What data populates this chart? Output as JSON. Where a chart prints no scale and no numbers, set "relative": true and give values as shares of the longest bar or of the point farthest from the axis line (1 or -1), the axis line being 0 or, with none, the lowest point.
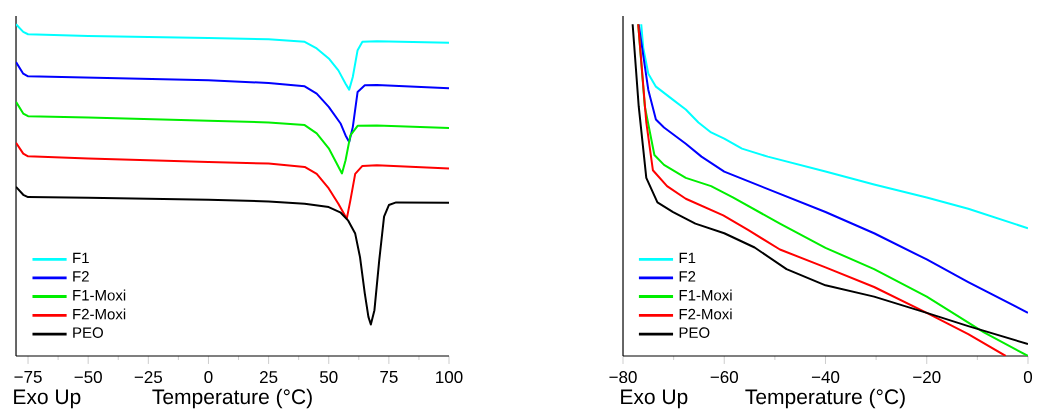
{
  "chart_data": [
    {
      "type": "line",
      "relative": true,
      "xlabel": "Temperature (°C)",
      "annotations": [
        "Exo Up"
      ],
      "xlim": [
        -80,
        100
      ],
      "xticks": [
        {
          "value": -75,
          "label": "−75"
        },
        {
          "value": -50,
          "label": "−50"
        },
        {
          "value": -25,
          "label": "−25"
        },
        0,
        25,
        50,
        75,
        100
      ],
      "legend": "bottom left",
      "grid": false,
      "marker": "none",
      "line_style": "solid",
      "series": [
        {
          "name": "F1",
          "color": "#00ffff",
          "x": [
            -80,
            -77,
            -75,
            -50,
            0,
            25,
            40,
            45,
            50,
            54,
            57,
            58.5,
            60,
            62,
            64,
            70,
            100
          ],
          "values": [
            1.0,
            0.977,
            0.97,
            0.965,
            0.959,
            0.955,
            0.947,
            0.927,
            0.897,
            0.861,
            0.821,
            0.803,
            0.841,
            0.922,
            0.947,
            0.949,
            0.944
          ]
        },
        {
          "name": "F2",
          "color": "#0000ff",
          "x": [
            -80,
            -77,
            -75,
            -50,
            0,
            25,
            40,
            45,
            50,
            55,
            57,
            58.5,
            60,
            62,
            65,
            70,
            100
          ],
          "values": [
            0.886,
            0.851,
            0.843,
            0.839,
            0.831,
            0.823,
            0.813,
            0.791,
            0.751,
            0.7,
            0.665,
            0.645,
            0.69,
            0.796,
            0.816,
            0.817,
            0.807
          ]
        },
        {
          "name": "F1-Moxi",
          "color": "#00ee00",
          "x": [
            -80,
            -77,
            -75,
            -50,
            0,
            25,
            40,
            45,
            50,
            53,
            55.5,
            57,
            59,
            62,
            70,
            100
          ],
          "values": [
            0.766,
            0.731,
            0.723,
            0.719,
            0.709,
            0.704,
            0.696,
            0.671,
            0.626,
            0.585,
            0.55,
            0.59,
            0.665,
            0.694,
            0.695,
            0.687
          ]
        },
        {
          "name": "F2-Moxi",
          "color": "#ff0000",
          "x": [
            -80,
            -77,
            -75,
            -50,
            0,
            25,
            40,
            45,
            50,
            54,
            57.5,
            59,
            61,
            64,
            70,
            100
          ],
          "values": [
            0.643,
            0.61,
            0.602,
            0.595,
            0.585,
            0.58,
            0.57,
            0.549,
            0.505,
            0.459,
            0.414,
            0.469,
            0.549,
            0.573,
            0.575,
            0.565
          ]
        },
        {
          "name": "PEO",
          "color": "#000000",
          "x": [
            -80,
            -77,
            -75,
            -50,
            0,
            25,
            40,
            50,
            55,
            58,
            61,
            63,
            65,
            66.5,
            67.5,
            69,
            71,
            73,
            75,
            78,
            100
          ],
          "values": [
            0.51,
            0.486,
            0.479,
            0.477,
            0.471,
            0.466,
            0.459,
            0.449,
            0.432,
            0.409,
            0.369,
            0.298,
            0.188,
            0.118,
            0.095,
            0.138,
            0.289,
            0.42,
            0.455,
            0.463,
            0.462
          ]
        }
      ]
    },
    {
      "type": "line",
      "relative": true,
      "xlabel": "Temperature (°C)",
      "annotations": [
        "Exo Up"
      ],
      "xlim": [
        -80,
        0
      ],
      "xticks": [
        {
          "value": -80,
          "label": "−80"
        },
        {
          "value": -60,
          "label": "−60"
        },
        {
          "value": -40,
          "label": "−40"
        },
        {
          "value": -20,
          "label": "−20"
        },
        0
      ],
      "legend": "bottom left",
      "grid": false,
      "marker": "none",
      "line_style": "solid",
      "series": [
        {
          "name": "F1",
          "color": "#00ffff",
          "x": [
            -76.4,
            -76.0,
            -75.0,
            -73.5,
            -70.1,
            -67.6,
            -65.1,
            -62.6,
            -60,
            -56.5,
            -51.4,
            -40,
            -30.4,
            -20,
            -11.8,
            0
          ],
          "values": [
            1.0,
            0.929,
            0.851,
            0.812,
            0.772,
            0.743,
            0.704,
            0.674,
            0.655,
            0.625,
            0.601,
            0.556,
            0.517,
            0.478,
            0.444,
            0.385
          ]
        },
        {
          "name": "F2",
          "color": "#0000ff",
          "x": [
            -76.9,
            -75.0,
            -73.5,
            -71.9,
            -67.6,
            -64.5,
            -60,
            -55.3,
            -40,
            -30.4,
            -20,
            -11.8,
            0
          ],
          "values": [
            1.0,
            0.802,
            0.713,
            0.689,
            0.64,
            0.601,
            0.556,
            0.527,
            0.434,
            0.37,
            0.291,
            0.223,
            0.13
          ]
        },
        {
          "name": "F1-Moxi",
          "color": "#00ee00",
          "x": [
            -77.0,
            -75.7,
            -73.8,
            -71.9,
            -67.6,
            -62.6,
            -58.3,
            -49,
            -40,
            -30.4,
            -20,
            -8.7,
            0
          ],
          "values": [
            1.0,
            0.753,
            0.606,
            0.576,
            0.537,
            0.512,
            0.478,
            0.399,
            0.326,
            0.262,
            0.179,
            0.071,
            0.0
          ]
        },
        {
          "name": "F2-Moxi",
          "color": "#ff0000",
          "x": [
            -77.0,
            -75.4,
            -74.1,
            -71.3,
            -67.6,
            -60.2,
            -55.3,
            -49,
            -40,
            -30.4,
            -20,
            -11.8,
            -4.4
          ],
          "values": [
            1.0,
            0.704,
            0.56,
            0.512,
            0.474,
            0.424,
            0.38,
            0.321,
            0.267,
            0.208,
            0.13,
            0.066,
            0.0
          ]
        },
        {
          "name": "PEO",
          "color": "#000000",
          "x": [
            -78.1,
            -76.9,
            -75.4,
            -73.2,
            -70.1,
            -65.7,
            -60,
            -54,
            -47.7,
            -40,
            -30.4,
            -20,
            -11.8,
            0
          ],
          "values": [
            1.0,
            0.753,
            0.537,
            0.463,
            0.434,
            0.399,
            0.37,
            0.327,
            0.262,
            0.213,
            0.179,
            0.13,
            0.09,
            0.036
          ]
        }
      ]
    }
  ]
}
